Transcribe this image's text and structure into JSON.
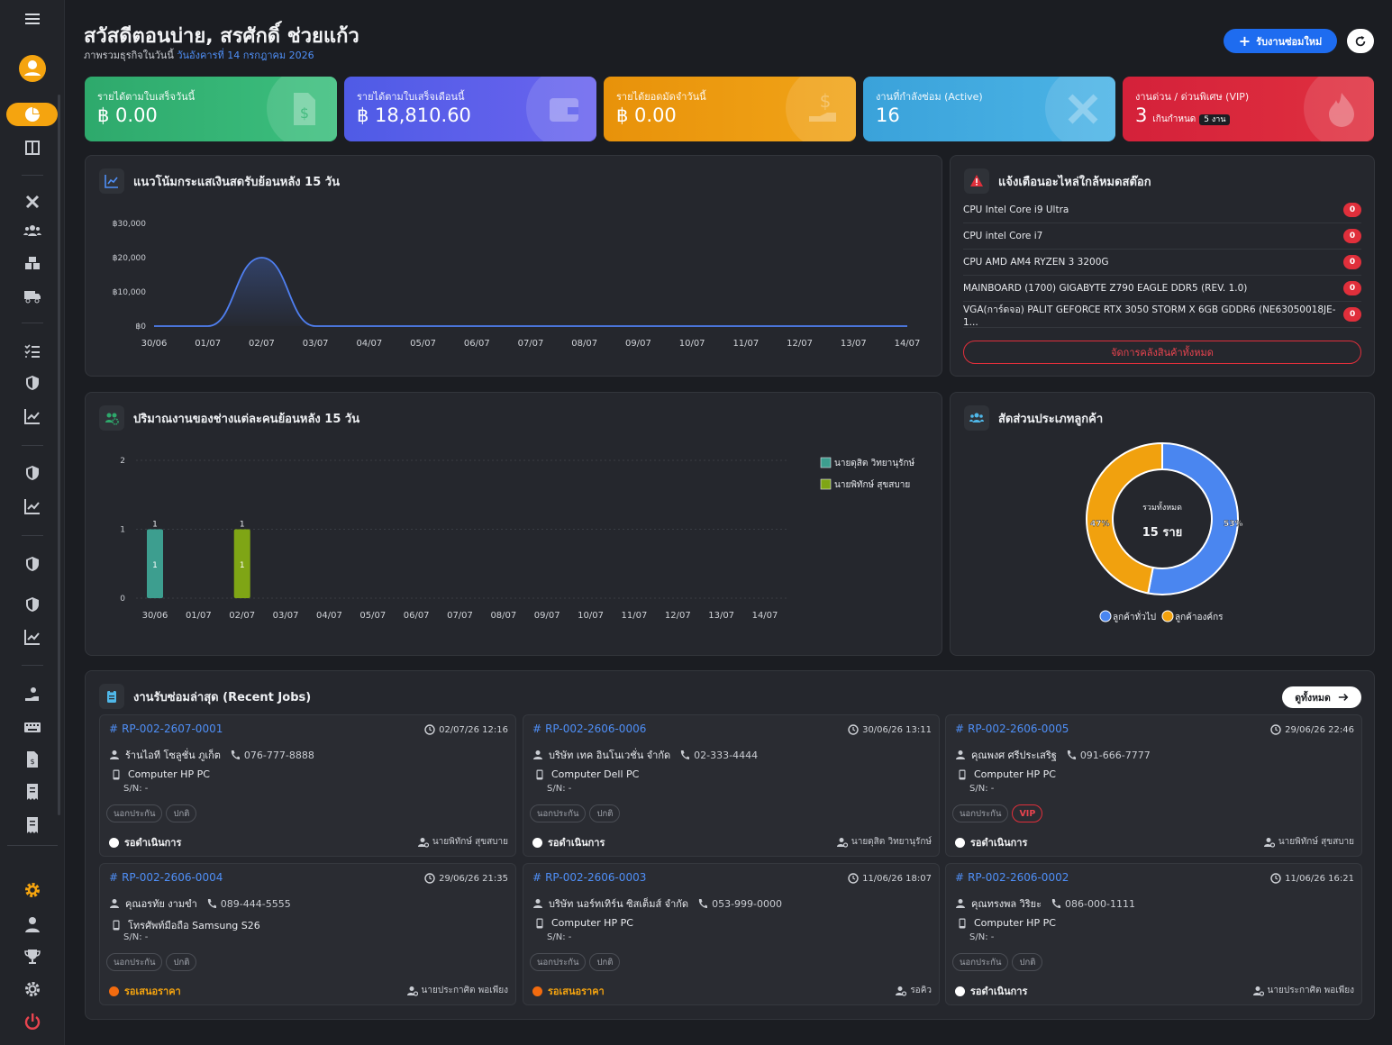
{
  "header": {
    "greeting": "สวัสดีตอนบ่าย, สรศักดิ์ ช่วยแก้ว",
    "subtitle_prefix": "ภาพรวมธุรกิจในวันนี้",
    "subtitle_date": "วันอังคารที่ 14 กรกฎาคม 2026",
    "new_job_label": "รับงานซ่อมใหม่"
  },
  "stats": [
    {
      "label": "รายได้ตามใบเสร็จวันนี้",
      "value": "฿ 0.00",
      "color": "#2ea96c",
      "icon": "receipt-icon"
    },
    {
      "label": "รายได้ตามใบเสร็จเดือนนี้",
      "value": "฿ 18,810.60",
      "color": "#5560ea",
      "icon": "wallet-icon"
    },
    {
      "label": "รายได้ยอดมัดจำวันนี้",
      "value": "฿ 0.00",
      "color": "#eb9a0c",
      "icon": "hand-money-icon"
    },
    {
      "label": "งานที่กำลังซ่อม (Active)",
      "value": "16",
      "color": "#3fa8dd",
      "icon": "tools-icon"
    },
    {
      "label": "งานด่วน / ด่วนพิเศษ (VIP)",
      "value": "3",
      "sub": "เกินกำหนด",
      "tag": "5 งาน",
      "color": "#d9263a",
      "icon": "fire-icon"
    }
  ],
  "cashflow": {
    "title": "แนวโน้มกระแสเงินสดรับย้อนหลัง 15 วัน"
  },
  "stock_alert": {
    "title": "แจ้งเตือนอะไหล่ใกล้หมดสต๊อก",
    "items": [
      {
        "name": "CPU Intel Core i9 Ultra",
        "qty": "0"
      },
      {
        "name": "CPU intel Core i7",
        "qty": "0"
      },
      {
        "name": "CPU AMD AM4 RYZEN 3 3200G",
        "qty": "0"
      },
      {
        "name": "MAINBOARD (1700) GIGABYTE Z790 EAGLE DDR5 (REV. 1.0)",
        "qty": "0"
      },
      {
        "name": "VGA(การ์ดจอ) PALIT GEFORCE RTX 3050 STORM X 6GB GDDR6 (NE63050018JE-1...",
        "qty": "0"
      }
    ],
    "manage_label": "จัดการคลังสินค้าทั้งหมด"
  },
  "workload": {
    "title": "ปริมาณงานของช่างแต่ละคนย้อนหลัง 15 วัน"
  },
  "customer_ratio": {
    "title": "สัดส่วนประเภทลูกค้า",
    "center_label": "รวมทั้งหมด",
    "center_value": "15 ราย"
  },
  "chart_data": [
    {
      "type": "area",
      "x": [
        "30/06",
        "01/07",
        "02/07",
        "03/07",
        "04/07",
        "05/07",
        "06/07",
        "07/07",
        "08/07",
        "09/07",
        "10/07",
        "11/07",
        "12/07",
        "13/07",
        "14/07"
      ],
      "series": [
        {
          "values": [
            0,
            0,
            20000,
            0,
            0,
            0,
            0,
            0,
            0,
            0,
            0,
            0,
            0,
            0,
            0
          ],
          "color": "#4f7ff0"
        }
      ],
      "yticks": [
        "฿0",
        "฿10,000",
        "฿20,000",
        "฿30,000"
      ],
      "ylim": [
        0,
        30000
      ],
      "grid": false
    },
    {
      "type": "bar",
      "categories": [
        "30/06",
        "01/07",
        "02/07",
        "03/07",
        "04/07",
        "05/07",
        "06/07",
        "07/07",
        "08/07",
        "09/07",
        "10/07",
        "11/07",
        "12/07",
        "13/07",
        "14/07"
      ],
      "series": [
        {
          "name": "นายดุสิต วิทยานุรักษ์",
          "values": [
            1,
            0,
            0,
            0,
            0,
            0,
            0,
            0,
            0,
            0,
            0,
            0,
            0,
            0,
            0
          ],
          "color": "#3d9e8f"
        },
        {
          "name": "นายพิทักษ์ สุขสบาย",
          "values": [
            0,
            0,
            1,
            0,
            0,
            0,
            0,
            0,
            0,
            0,
            0,
            0,
            0,
            0,
            0
          ],
          "color": "#7fa515"
        }
      ],
      "yticks": [
        "0",
        "1",
        "2"
      ],
      "ylim": [
        0,
        2
      ],
      "legend": "top-right"
    },
    {
      "type": "pie",
      "labels": [
        "ลูกค้าทั่วไป",
        "ลูกค้าองค์กร"
      ],
      "values": [
        53,
        47
      ],
      "value_labels": [
        "53%",
        "47%"
      ],
      "colors": [
        "#4a86f0",
        "#f1a10e"
      ],
      "legend": "bottom"
    }
  ],
  "recent_jobs": {
    "title": "งานรับซ่อมล่าสุด (Recent Jobs)",
    "view_all_label": "ดูทั้งหมด",
    "jobs": [
      {
        "code": "RP-002-2607-0001",
        "date": "02/07/26 12:16",
        "customer": "ร้านไอที โซลูชั่น ภูเก็ต",
        "phone": "076-777-8888",
        "device": "Computer HP PC",
        "sn": "S/N: -",
        "warranty": "นอกประกัน",
        "priority": "ปกติ",
        "status": "รอดำเนินการ",
        "status_color": "white",
        "tech": "นายพิทักษ์ สุขสบาย"
      },
      {
        "code": "RP-002-2606-0006",
        "date": "30/06/26 13:11",
        "customer": "บริษัท เทค อินโนเวชั่น จำกัด",
        "phone": "02-333-4444",
        "device": "Computer Dell PC",
        "sn": "S/N: -",
        "warranty": "นอกประกัน",
        "priority": "ปกติ",
        "status": "รอดำเนินการ",
        "status_color": "white",
        "tech": "นายดุสิต วิทยานุรักษ์"
      },
      {
        "code": "RP-002-2606-0005",
        "date": "29/06/26 22:46",
        "customer": "คุณพงศ ศรีประเสริฐ",
        "phone": "091-666-7777",
        "device": "Computer HP PC",
        "sn": "S/N: -",
        "warranty": "นอกประกัน",
        "priority": "VIP",
        "status": "รอดำเนินการ",
        "status_color": "white",
        "tech": "นายพิทักษ์ สุขสบาย"
      },
      {
        "code": "RP-002-2606-0004",
        "date": "29/06/26 21:35",
        "customer": "คุณอรทัย งามขำ",
        "phone": "089-444-5555",
        "device": "โทรศัพท์มือถือ Samsung S26",
        "sn": "S/N: -",
        "warranty": "นอกประกัน",
        "priority": "ปกติ",
        "status": "รอเสนอราคา",
        "status_color": "orange",
        "tech": "นายประกาศิต พอเพียง"
      },
      {
        "code": "RP-002-2606-0003",
        "date": "11/06/26 18:07",
        "customer": "บริษัท นอร์ทเทิร์น ซิสเต็มส์ จำกัด",
        "phone": "053-999-0000",
        "device": "Computer HP PC",
        "sn": "S/N: -",
        "warranty": "นอกประกัน",
        "priority": "ปกติ",
        "status": "รอเสนอราคา",
        "status_color": "orange",
        "tech": "รอคิว"
      },
      {
        "code": "RP-002-2606-0002",
        "date": "11/06/26 16:21",
        "customer": "คุณทรงพล วิริยะ",
        "phone": "086-000-1111",
        "device": "Computer HP PC",
        "sn": "S/N: -",
        "warranty": "นอกประกัน",
        "priority": "ปกติ",
        "status": "รอดำเนินการ",
        "status_color": "white",
        "tech": "นายประกาศิต พอเพียง"
      }
    ]
  }
}
